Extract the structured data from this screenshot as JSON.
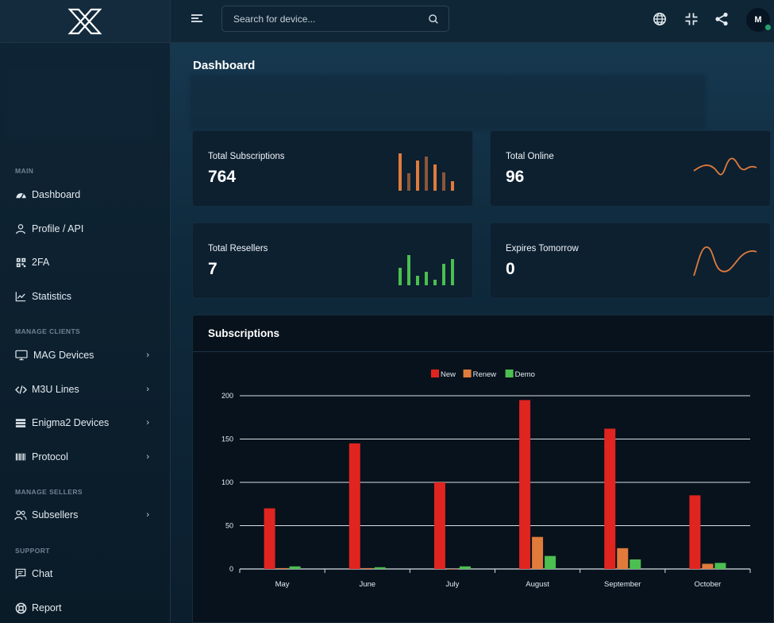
{
  "brand": {
    "logo_text": "X"
  },
  "search": {
    "placeholder": "Search for device..."
  },
  "user": {
    "initial": "M"
  },
  "sidebar": {
    "sections": {
      "main": "MAIN",
      "manage_clients": "MANAGE CLIENTS",
      "manage_sellers": "MANAGE SELLERS",
      "support": "SUPPORT"
    },
    "items": [
      {
        "label": "Dashboard"
      },
      {
        "label": "Profile / API"
      },
      {
        "label": "2FA"
      },
      {
        "label": "Statistics"
      },
      {
        "label": "MAG Devices"
      },
      {
        "label": "M3U Lines"
      },
      {
        "label": "Enigma2 Devices"
      },
      {
        "label": "Protocol"
      },
      {
        "label": "Subsellers"
      },
      {
        "label": "Chat"
      },
      {
        "label": "Report"
      }
    ]
  },
  "page": {
    "title": "Dashboard"
  },
  "stats": [
    {
      "label": "Total Subscriptions",
      "value": "764"
    },
    {
      "label": "Total Online",
      "value": "96"
    },
    {
      "label": "Total Resellers",
      "value": "7"
    },
    {
      "label": "Expires Tomorrow",
      "value": "0"
    }
  ],
  "colors": {
    "orange": "#e07b3c",
    "green": "#4bbf4f",
    "red": "#e0241f"
  },
  "subscriptions": {
    "title": "Subscriptions"
  },
  "chart_data": {
    "type": "bar",
    "categories": [
      "May",
      "June",
      "July",
      "August",
      "September",
      "October"
    ],
    "series": [
      {
        "name": "New",
        "color": "#e0241f",
        "values": [
          70,
          145,
          100,
          195,
          162,
          85
        ]
      },
      {
        "name": "Renew",
        "color": "#e07b3c",
        "values": [
          1,
          1,
          0,
          37,
          24,
          6
        ]
      },
      {
        "name": "Demo",
        "color": "#4bbf4f",
        "values": [
          3,
          2,
          3,
          15,
          11,
          7
        ]
      }
    ],
    "yticks": [
      0,
      50,
      100,
      150,
      200
    ],
    "ylim": [
      0,
      200
    ],
    "title": "",
    "xlabel": "",
    "ylabel": ""
  }
}
